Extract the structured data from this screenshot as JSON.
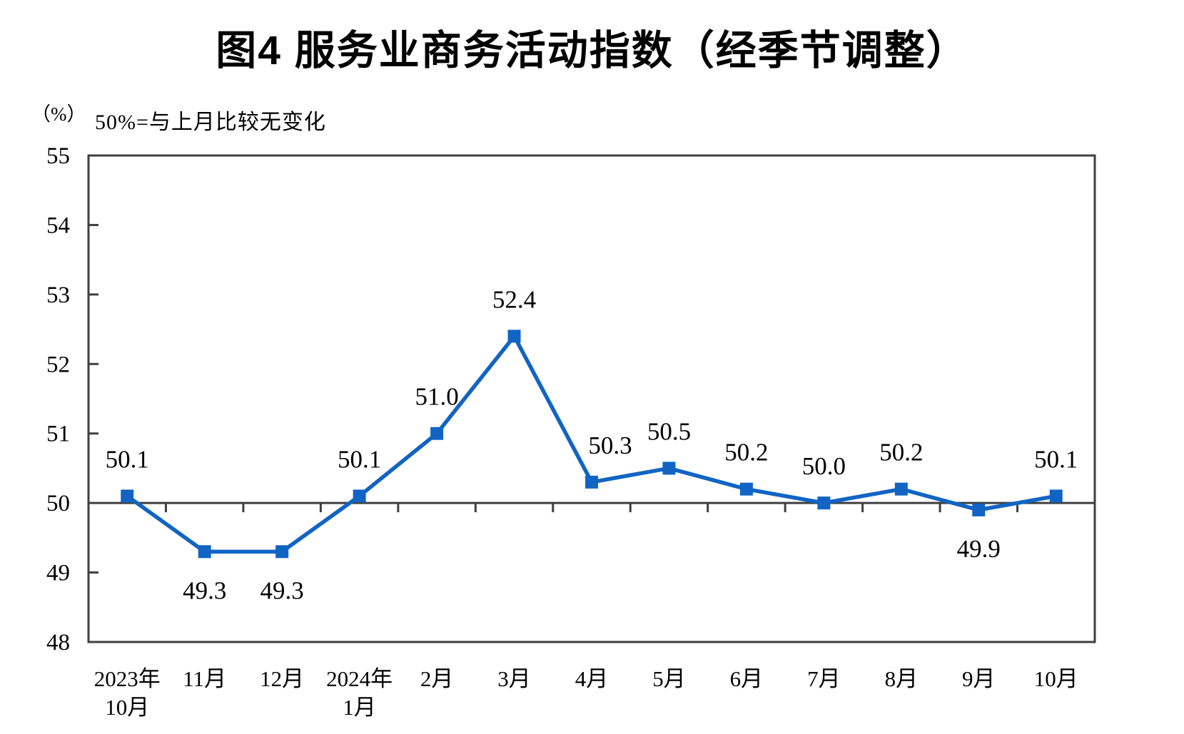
{
  "page": {
    "title": "图4 服务业商务活动指数（经季节调整）",
    "unit_label": "（%）",
    "subtitle_note": "50%=与上月比较无变化"
  },
  "chart_data": {
    "type": "line",
    "title": "图4 服务业商务活动指数（经季节调整）",
    "unit_label": "（%）",
    "subtitle": "50%=与上月比较无变化",
    "categories": [
      [
        "2023年",
        "10月"
      ],
      [
        "11月"
      ],
      [
        "12月"
      ],
      [
        "2024年",
        "1月"
      ],
      [
        "2月"
      ],
      [
        "3月"
      ],
      [
        "4月"
      ],
      [
        "5月"
      ],
      [
        "6月"
      ],
      [
        "7月"
      ],
      [
        "8月"
      ],
      [
        "9月"
      ],
      [
        "10月"
      ]
    ],
    "series": [
      {
        "name": "服务业商务活动指数",
        "values": [
          50.1,
          49.3,
          49.3,
          50.1,
          51.0,
          52.4,
          50.3,
          50.5,
          50.2,
          50.0,
          50.2,
          49.9,
          50.1
        ]
      }
    ],
    "data_labels": [
      "50.1",
      "49.3",
      "49.3",
      "50.1",
      "51.0",
      "52.4",
      "50.3",
      "50.5",
      "50.2",
      "50.0",
      "50.2",
      "49.9",
      "50.1"
    ],
    "label_positions": [
      "above",
      "below",
      "below",
      "above",
      "above",
      "above",
      "above",
      "above",
      "above",
      "above",
      "above",
      "below",
      "above"
    ],
    "ylim": [
      48,
      55
    ],
    "yticks": [
      48,
      49,
      50,
      51,
      52,
      53,
      54,
      55
    ],
    "reference_line": 50,
    "grid": false,
    "legend": false,
    "line_color": "#1164c4",
    "axis_color": "#3f3f3f",
    "text_color": "#000000"
  }
}
